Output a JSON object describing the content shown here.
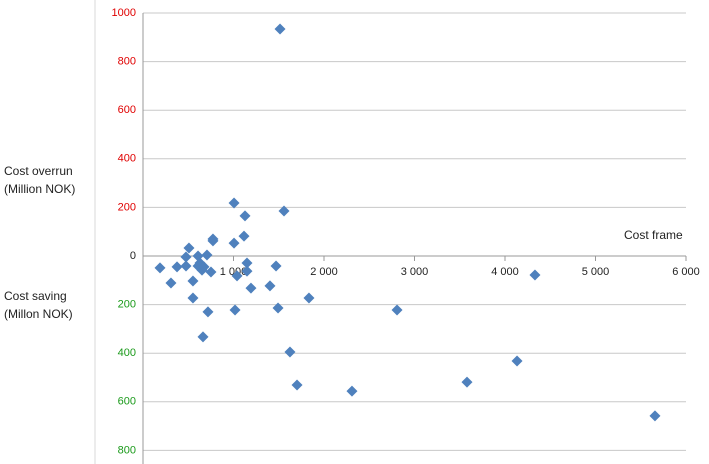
{
  "chart_data": {
    "type": "scatter",
    "y_label_positive": [
      "Cost overrun",
      "(Million NOK)"
    ],
    "y_label_negative": [
      "Cost saving",
      "(Millon NOK)"
    ],
    "x_label": "Cost frame",
    "series": [
      {
        "color": "#4f81bd",
        "x": [
          188,
          309,
          376,
          475,
          475,
          508,
          552,
          552,
          608,
          608,
          652,
          630,
          674,
          663,
          707,
          718,
          751,
          773,
          773,
          1006,
          1006,
          1017,
          1039,
          1116,
          1127,
          1149,
          1149,
          1193,
          1403,
          1470,
          1492,
          1514,
          1558,
          1624,
          1702,
          1834,
          2309,
          2807,
          3580,
          4133,
          4331,
          5657
        ],
        "values": [
          -49,
          -111,
          -45,
          -41,
          -4,
          33,
          -103,
          -173,
          0,
          -41,
          -58,
          -29,
          -45,
          -333,
          4,
          -230,
          -66,
          62,
          70,
          218,
          53,
          -222,
          -82,
          82,
          165,
          -29,
          -62,
          -132,
          -123,
          -41,
          -214,
          934,
          185,
          -395,
          -531,
          -173,
          -556,
          -222,
          -519,
          -432,
          -78,
          -658
        ]
      }
    ],
    "xlim": [
      0,
      6000
    ],
    "xticks": [
      {
        "value": 1000,
        "label": "1 000"
      },
      {
        "value": 2000,
        "label": "2 000"
      },
      {
        "value": 3000,
        "label": "3 000"
      },
      {
        "value": 4000,
        "label": "4 000"
      },
      {
        "value": 5000,
        "label": "5 000"
      },
      {
        "value": 6000,
        "label": "6 000"
      }
    ],
    "ylim": [
      -850,
      1000
    ],
    "yticks": [
      1000,
      800,
      600,
      400,
      200,
      0,
      {
        "value": -200,
        "label": "200"
      },
      {
        "value": -400,
        "label": "400"
      },
      {
        "value": -600,
        "label": "600"
      },
      {
        "value": -800,
        "label": "800"
      }
    ],
    "positive_tick_color": "#e00000",
    "negative_tick_color": "#1a9a1a",
    "grid": true
  }
}
